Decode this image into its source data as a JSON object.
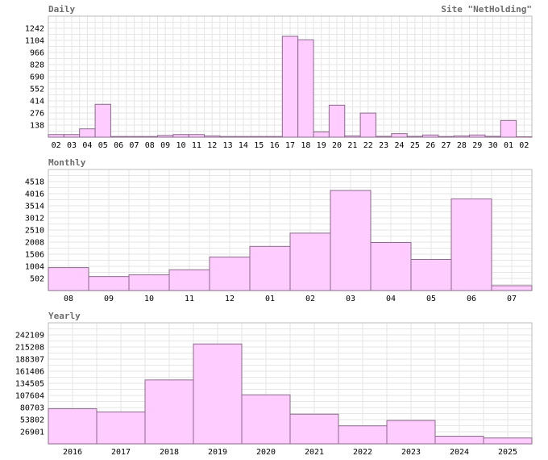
{
  "site_label": "Site \"NetHolding\"",
  "chart_data": [
    {
      "type": "bar",
      "title": "Daily",
      "categories": [
        "02",
        "03",
        "04",
        "05",
        "06",
        "07",
        "08",
        "09",
        "10",
        "11",
        "12",
        "13",
        "14",
        "15",
        "16",
        "17",
        "18",
        "19",
        "20",
        "21",
        "22",
        "23",
        "24",
        "25",
        "26",
        "27",
        "28",
        "29",
        "30",
        "01",
        "02"
      ],
      "values": [
        30,
        30,
        95,
        375,
        8,
        8,
        8,
        20,
        30,
        30,
        15,
        8,
        8,
        8,
        8,
        1150,
        1110,
        60,
        365,
        15,
        275,
        10,
        40,
        10,
        25,
        8,
        15,
        25,
        10,
        190,
        5
      ],
      "yticks": [
        138,
        276,
        414,
        552,
        690,
        828,
        966,
        1104,
        1242
      ],
      "ylim": [
        0,
        1380
      ],
      "colors": {
        "bar_fill": "#ffccff",
        "bar_stroke": "#8a6a8a",
        "grid": "#e6e6e6",
        "title": "#6d6d6d"
      }
    },
    {
      "type": "bar",
      "title": "Monthly",
      "categories": [
        "08",
        "09",
        "10",
        "11",
        "12",
        "01",
        "02",
        "03",
        "04",
        "05",
        "06",
        "07"
      ],
      "values": [
        950,
        580,
        650,
        860,
        1390,
        1830,
        2380,
        4150,
        1990,
        1290,
        3800,
        200
      ],
      "yticks": [
        502,
        1004,
        1506,
        2008,
        2510,
        3012,
        3514,
        4016,
        4518
      ],
      "ylim": [
        0,
        5020
      ],
      "colors": {
        "bar_fill": "#ffccff",
        "bar_stroke": "#8a6a8a",
        "grid": "#e6e6e6",
        "title": "#6d6d6d"
      }
    },
    {
      "type": "bar",
      "title": "Yearly",
      "categories": [
        "2016",
        "2017",
        "2018",
        "2019",
        "2020",
        "2021",
        "2022",
        "2023",
        "2024",
        "2025"
      ],
      "values": [
        78000,
        71000,
        142000,
        222000,
        109000,
        66000,
        40000,
        52000,
        17000,
        13000
      ],
      "yticks": [
        26901,
        53802,
        80703,
        107604,
        134505,
        161406,
        188307,
        215208,
        242109
      ],
      "ylim": [
        0,
        269010
      ],
      "colors": {
        "bar_fill": "#ffccff",
        "bar_stroke": "#8a6a8a",
        "grid": "#e6e6e6",
        "title": "#6d6d6d"
      }
    }
  ]
}
